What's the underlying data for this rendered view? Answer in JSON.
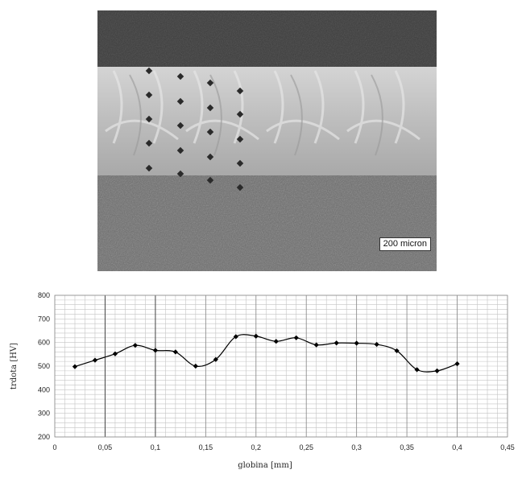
{
  "micrograph": {
    "scale_label": "200 micron",
    "colors": {
      "top_band": "#3b3b3b",
      "coating": "#c6c6c6",
      "substrate": "#6b6b6b",
      "indent": "#2a2a2a"
    }
  },
  "chart_data": {
    "type": "line",
    "title": "",
    "xlabel": "globina [mm]",
    "ylabel": "trdota [HV]",
    "xlim": [
      0,
      0.45
    ],
    "ylim": [
      200,
      800
    ],
    "x_ticks": [
      "0",
      "0,05",
      "0,1",
      "0,15",
      "0,2",
      "0,25",
      "0,3",
      "0,35",
      "0,4",
      "0,45"
    ],
    "y_ticks": [
      "200",
      "300",
      "400",
      "500",
      "600",
      "700",
      "800"
    ],
    "grid": true,
    "legend": "none",
    "series": [
      {
        "color": "#000000",
        "x": [
          0.02,
          0.04,
          0.06,
          0.08,
          0.1,
          0.12,
          0.14,
          0.16,
          0.18,
          0.2,
          0.22,
          0.24,
          0.26,
          0.28,
          0.3,
          0.32,
          0.34,
          0.36,
          0.38,
          0.4
        ],
        "values": [
          498,
          525,
          552,
          588,
          567,
          560,
          500,
          528,
          625,
          627,
          605,
          620,
          590,
          598,
          597,
          592,
          565,
          485,
          480,
          510
        ]
      }
    ]
  }
}
